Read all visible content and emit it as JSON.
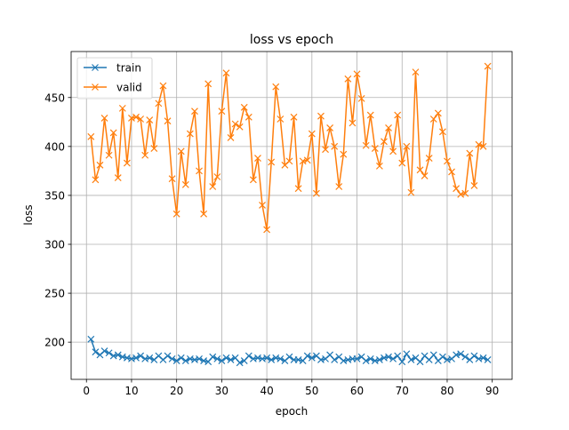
{
  "chart_data": {
    "type": "line",
    "title": "loss vs epoch",
    "xlabel": "epoch",
    "ylabel": "loss",
    "xlim": [
      -3.4,
      94.4
    ],
    "ylim": [
      162,
      497
    ],
    "xticks": [
      0,
      10,
      20,
      30,
      40,
      50,
      60,
      70,
      80,
      90
    ],
    "yticks": [
      200,
      250,
      300,
      350,
      400,
      450
    ],
    "grid": true,
    "legend_position": "top-left",
    "marker": "x",
    "x": [
      1,
      2,
      3,
      4,
      5,
      6,
      7,
      8,
      9,
      10,
      11,
      12,
      13,
      14,
      15,
      16,
      17,
      18,
      19,
      20,
      21,
      22,
      23,
      24,
      25,
      26,
      27,
      28,
      29,
      30,
      31,
      32,
      33,
      34,
      35,
      36,
      37,
      38,
      39,
      40,
      41,
      42,
      43,
      44,
      45,
      46,
      47,
      48,
      49,
      50,
      51,
      52,
      53,
      54,
      55,
      56,
      57,
      58,
      59,
      60,
      61,
      62,
      63,
      64,
      65,
      66,
      67,
      68,
      69,
      70,
      71,
      72,
      73,
      74,
      75,
      76,
      77,
      78,
      79,
      80,
      81,
      82,
      83,
      84,
      85,
      86,
      87,
      88,
      89
    ],
    "series": [
      {
        "name": "train",
        "color": "#1f77b4",
        "values": [
          203,
          190,
          187,
          191,
          189,
          186,
          187,
          185,
          184,
          183,
          184,
          186,
          183,
          184,
          182,
          186,
          182,
          186,
          183,
          181,
          184,
          181,
          183,
          182,
          183,
          181,
          180,
          185,
          183,
          181,
          184,
          182,
          184,
          179,
          181,
          186,
          183,
          184,
          183,
          184,
          182,
          184,
          183,
          181,
          185,
          182,
          182,
          181,
          186,
          184,
          186,
          182,
          183,
          187,
          182,
          185,
          181,
          182,
          183,
          183,
          185,
          181,
          183,
          181,
          182,
          184,
          185,
          183,
          186,
          180,
          188,
          182,
          184,
          180,
          186,
          182,
          187,
          181,
          185,
          182,
          183,
          187,
          188,
          185,
          182,
          186,
          183,
          184,
          182
        ]
      },
      {
        "name": "valid",
        "color": "#ff7f0e",
        "values": [
          410,
          366,
          381,
          429,
          391,
          414,
          368,
          439,
          383,
          429,
          430,
          428,
          391,
          427,
          398,
          444,
          462,
          426,
          367,
          331,
          395,
          361,
          413,
          436,
          375,
          331,
          464,
          359,
          369,
          436,
          475,
          409,
          423,
          420,
          440,
          430,
          366,
          388,
          340,
          315,
          384,
          461,
          428,
          381,
          385,
          430,
          357,
          385,
          386,
          413,
          352,
          431,
          397,
          419,
          400,
          359,
          392,
          469,
          424,
          474,
          449,
          401,
          432,
          398,
          380,
          405,
          419,
          395,
          432,
          383,
          400,
          353,
          476,
          376,
          370,
          388,
          428,
          434,
          415,
          385,
          374,
          357,
          351,
          352,
          393,
          360,
          402,
          400,
          482
        ]
      }
    ]
  }
}
